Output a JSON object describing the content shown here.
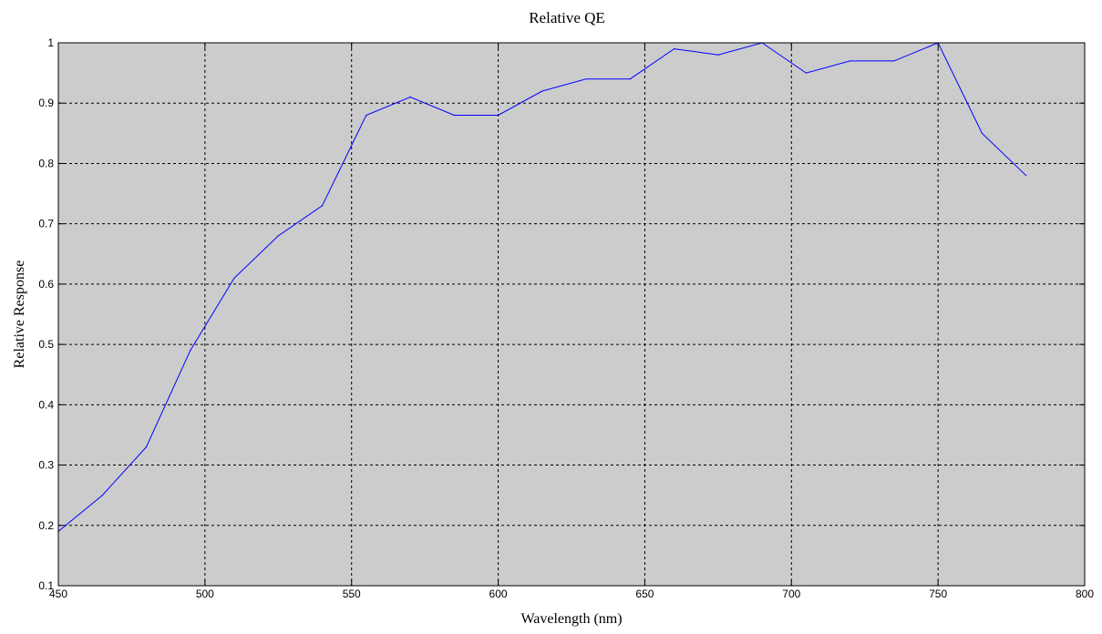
{
  "chart_data": {
    "type": "line",
    "title": "Relative QE",
    "xlabel": "Wavelength (nm)",
    "ylabel": "Relative Response",
    "xlim": [
      450,
      800
    ],
    "ylim": [
      0.1,
      1
    ],
    "x_ticks": [
      450,
      500,
      550,
      600,
      650,
      700,
      750,
      800
    ],
    "x_tick_labels": [
      "450",
      "500",
      "550",
      "600",
      "650",
      "700",
      "750",
      "800"
    ],
    "y_ticks": [
      0.1,
      0.2,
      0.3,
      0.4,
      0.5,
      0.6,
      0.7,
      0.8,
      0.9,
      1
    ],
    "y_tick_labels": [
      "0.1",
      "0.2",
      "0.3",
      "0.4",
      "0.5",
      "0.6",
      "0.7",
      "0.8",
      "0.9",
      "1"
    ],
    "grid": true,
    "plot_background": "#cccccc",
    "series": [
      {
        "color": "#0000ff",
        "x": [
          450,
          465,
          480,
          495,
          510,
          525,
          540,
          555,
          570,
          585,
          600,
          615,
          630,
          645,
          660,
          675,
          690,
          705,
          720,
          735,
          750,
          765,
          780
        ],
        "y": [
          0.19,
          0.25,
          0.33,
          0.49,
          0.61,
          0.68,
          0.73,
          0.88,
          0.91,
          0.88,
          0.88,
          0.92,
          0.94,
          0.94,
          0.99,
          0.98,
          1.0,
          0.95,
          0.97,
          0.97,
          1.0,
          0.85,
          0.78
        ]
      }
    ]
  }
}
